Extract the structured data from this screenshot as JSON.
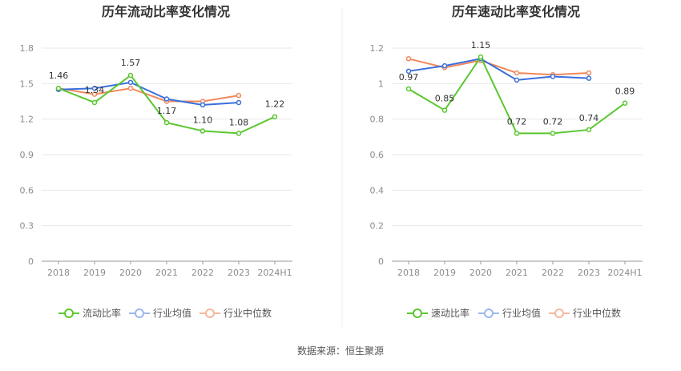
{
  "source": "数据来源：恒生聚源",
  "chart_data": [
    {
      "type": "line",
      "title": "历年流动比率变化情况",
      "categories": [
        "2018",
        "2019",
        "2020",
        "2021",
        "2022",
        "2023",
        "2024H1"
      ],
      "y_ticks": [
        "0",
        "0.3",
        "0.6",
        "0.9",
        "1.2",
        "1.5",
        "1.8"
      ],
      "ylim": [
        0,
        1.8
      ],
      "grid": true,
      "legend_position": "bottom",
      "series": [
        {
          "name": "流动比率",
          "color": "#5ac72f",
          "values": [
            1.46,
            1.34,
            1.57,
            1.17,
            1.1,
            1.08,
            1.22
          ],
          "labels": [
            "1.46",
            "1.34",
            "1.57",
            "1.17",
            "1.10",
            "1.08",
            "1.22"
          ]
        },
        {
          "name": "行业均值",
          "color": "#3a6fdb",
          "values": [
            1.45,
            1.46,
            1.51,
            1.37,
            1.32,
            1.34,
            null
          ]
        },
        {
          "name": "行业中位数",
          "color": "#f2875c",
          "values": [
            1.46,
            1.41,
            1.46,
            1.35,
            1.35,
            1.4,
            null
          ]
        }
      ]
    },
    {
      "type": "line",
      "title": "历年速动比率变化情况",
      "categories": [
        "2018",
        "2019",
        "2020",
        "2021",
        "2022",
        "2023",
        "2024H1"
      ],
      "y_ticks": [
        "0",
        "0.2",
        "0.4",
        "0.6",
        "0.8",
        "1",
        "1.2"
      ],
      "ylim": [
        0,
        1.2
      ],
      "grid": true,
      "legend_position": "bottom",
      "series": [
        {
          "name": "速动比率",
          "color": "#5ac72f",
          "values": [
            0.97,
            0.85,
            1.15,
            0.72,
            0.72,
            0.74,
            0.89
          ],
          "labels": [
            "0.97",
            "0.85",
            "1.15",
            "0.72",
            "0.72",
            "0.74",
            "0.89"
          ]
        },
        {
          "name": "行业均值",
          "color": "#3a6fdb",
          "values": [
            1.07,
            1.1,
            1.14,
            1.02,
            1.04,
            1.03,
            null
          ]
        },
        {
          "name": "行业中位数",
          "color": "#f2875c",
          "values": [
            1.14,
            1.09,
            1.13,
            1.06,
            1.05,
            1.06,
            null
          ]
        }
      ]
    }
  ]
}
